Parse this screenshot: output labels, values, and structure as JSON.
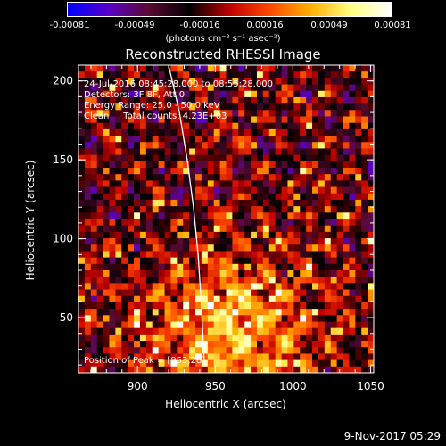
{
  "colorbar": {
    "tick_labels": [
      "-0.00081",
      "-0.00049",
      "-0.00016",
      "0.00016",
      "0.00049",
      "0.00081"
    ],
    "units_label": "(photons cm⁻² s⁻¹ asec⁻²)",
    "range": [
      -0.00081,
      0.00081
    ],
    "colors": [
      "#0000ff",
      "#5a00c8",
      "#5a0a32",
      "#000000",
      "#c00000",
      "#ff4a00",
      "#ffb000",
      "#ffff80",
      "#ffffff"
    ]
  },
  "chart_data": {
    "type": "heatmap",
    "title": "Reconstructed RHESSI Image",
    "xlabel": "Heliocentric X (arcsec)",
    "ylabel": "Heliocentric Y (arcsec)",
    "xlim": [
      862,
      1052
    ],
    "ylim": [
      15,
      210
    ],
    "x_ticks": [
      900,
      950,
      1000,
      1050
    ],
    "y_ticks": [
      50,
      100,
      150,
      200
    ],
    "annotations": [
      "24-Jul-2016 08:45:28.000 to 08:55:28.000",
      "Detectors: 3F 8F, Att 0",
      "Energy Range: 25.0 - 50.0 keV",
      "Clean     Total counts: 4.23E+03"
    ],
    "peak_label": "Position of Peak = [953,28]",
    "limb_curve": [
      [
        920,
        210
      ],
      [
        927,
        180
      ],
      [
        932,
        150
      ],
      [
        936,
        120
      ],
      [
        939,
        90
      ],
      [
        941,
        60
      ],
      [
        942,
        40
      ],
      [
        943,
        20
      ]
    ]
  },
  "timestamp": "9-Nov-2017 05:29"
}
